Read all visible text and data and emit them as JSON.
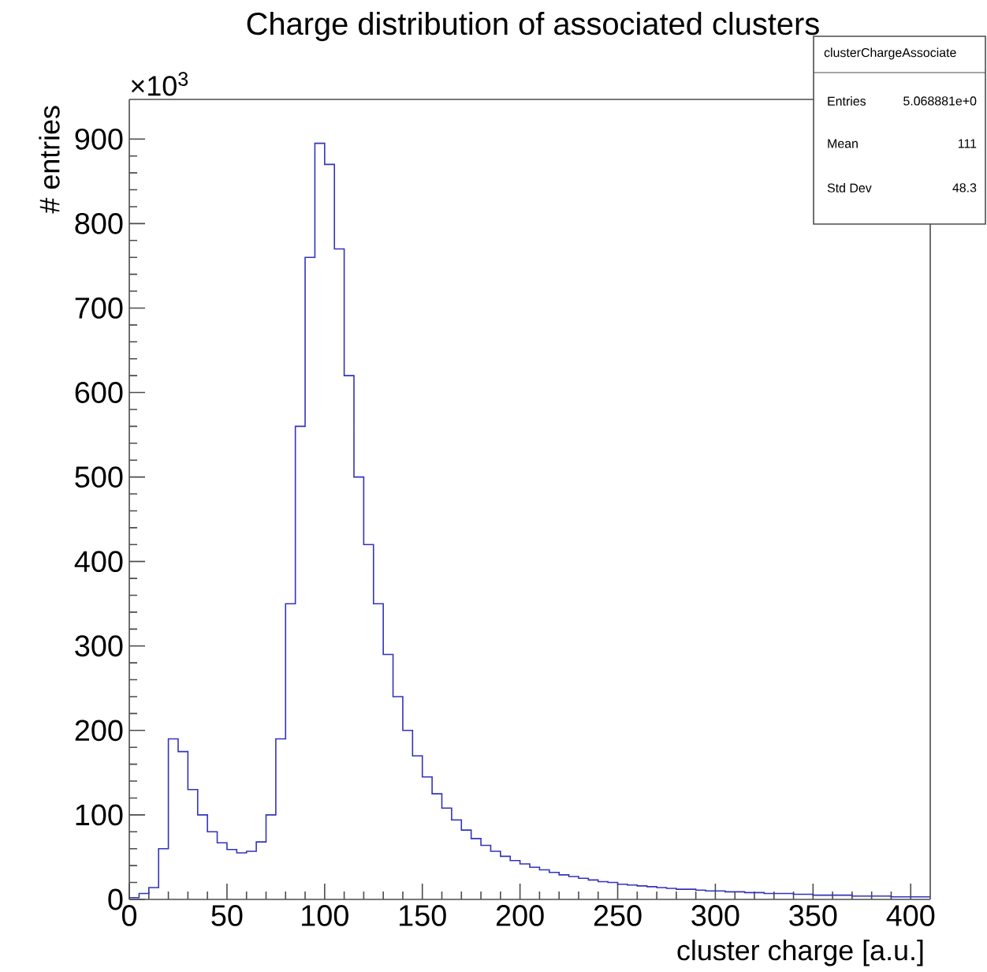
{
  "chart_data": {
    "type": "histogram",
    "title": "Charge distribution of associated clusters",
    "xlabel": "cluster charge [a.u.]",
    "ylabel": "# entries",
    "bins": [
      0,
      5,
      10,
      15,
      20,
      25,
      30,
      35,
      40,
      45,
      50,
      55,
      60,
      65,
      70,
      75,
      80,
      85,
      90,
      95,
      100,
      105,
      110,
      115,
      120,
      125,
      130,
      135,
      140,
      145,
      150,
      155,
      160,
      165,
      170,
      175,
      180,
      185,
      190,
      195,
      200,
      205,
      210,
      215,
      220,
      225,
      230,
      235,
      240,
      245,
      250,
      255,
      260,
      265,
      270,
      275,
      280,
      285,
      290,
      295,
      300,
      305,
      310,
      315,
      320,
      325,
      330,
      335,
      340,
      345,
      350,
      355,
      360,
      365,
      370,
      375,
      380,
      385,
      390,
      395,
      400,
      405,
      410
    ],
    "values": [
      2,
      7,
      14,
      60,
      190,
      175,
      130,
      100,
      80,
      67,
      59,
      55,
      57,
      68,
      100,
      190,
      350,
      560,
      760,
      895,
      870,
      770,
      620,
      500,
      420,
      350,
      290,
      240,
      200,
      170,
      145,
      125,
      108,
      94,
      82,
      72,
      64,
      57,
      51,
      46,
      42,
      38,
      35,
      32,
      29,
      27,
      25,
      23,
      21,
      20,
      18,
      17,
      16,
      15,
      14,
      13,
      12,
      12,
      11,
      10,
      10,
      9,
      9,
      8,
      8,
      7,
      7,
      7,
      6,
      6,
      5,
      5,
      5,
      5,
      4,
      4,
      4,
      4,
      3,
      3,
      3,
      3
    ],
    "color": "#3333bb",
    "xlim": [
      0,
      410
    ],
    "ylim": [
      0,
      947
    ],
    "xticks": [
      0,
      50,
      100,
      150,
      200,
      250,
      300,
      350,
      400
    ],
    "yticks": [
      0,
      100,
      200,
      300,
      400,
      500,
      600,
      700,
      800,
      900
    ],
    "grid": false,
    "annotations": [
      "×10$^{3}$",
      "clusterChargeAssociate",
      "Entries",
      "5.068881e+0",
      "Mean",
      "111",
      "Std Dev",
      "48.3"
    ]
  }
}
